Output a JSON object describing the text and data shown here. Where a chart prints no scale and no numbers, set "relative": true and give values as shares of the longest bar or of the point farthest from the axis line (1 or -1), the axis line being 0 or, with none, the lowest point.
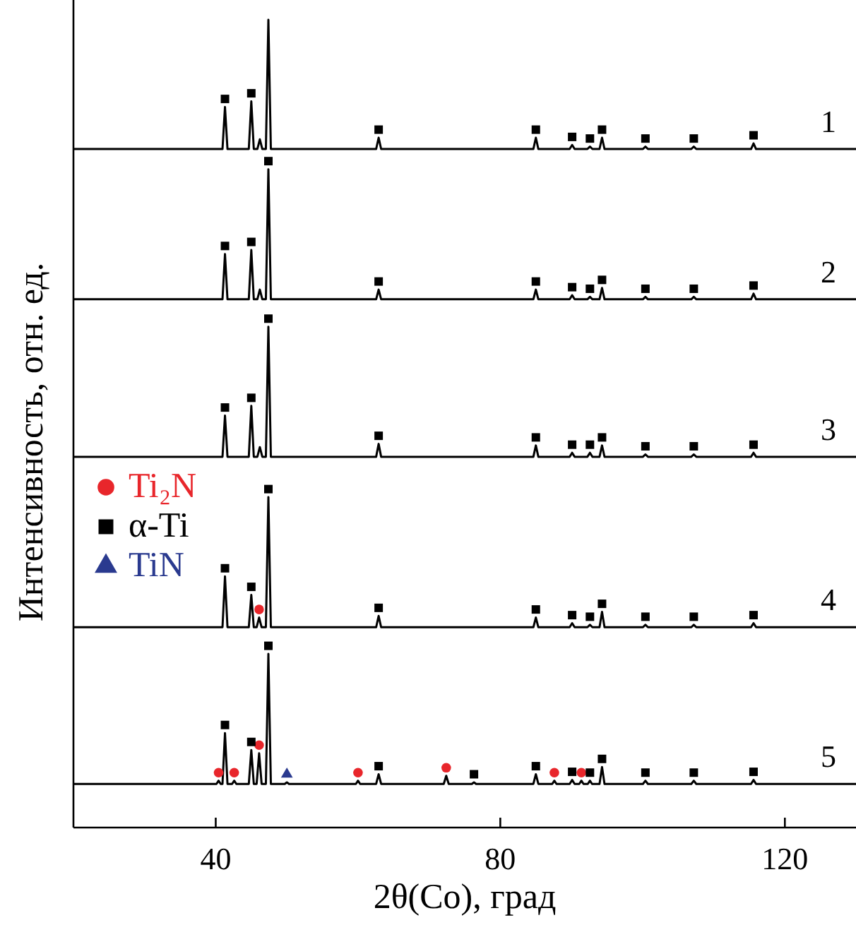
{
  "chart_data": {
    "type": "line",
    "relative": true,
    "xlabel": "2θ(Co), град",
    "ylabel": "Интенсивность, отн. ед.",
    "xlim": [
      20,
      130
    ],
    "xticks": [
      40,
      80,
      120
    ],
    "legend": "left",
    "series": [
      {
        "name": "1",
        "color": "#000000",
        "marker": "none",
        "x": [
          20,
          40.95,
          41.3,
          41.65,
          44.65,
          45.0,
          45.35,
          45.85,
          46.2,
          46.55,
          47.05,
          47.4,
          47.75,
          62.55,
          62.9,
          63.25,
          84.65,
          85.0,
          85.35,
          89.75,
          90.1,
          90.45,
          92.25,
          92.6,
          92.95,
          93.95,
          94.3,
          94.65,
          100.05,
          100.4,
          100.75,
          106.85,
          107.2,
          107.55,
          115.25,
          115.6,
          115.95,
          130
        ],
        "values": [
          0.84,
          0.84,
          0.892,
          0.84,
          0.84,
          0.899,
          0.84,
          0.84,
          0.852,
          0.84,
          0.84,
          1.0,
          0.84,
          0.84,
          0.854,
          0.84,
          0.84,
          0.854,
          0.84,
          0.84,
          0.845,
          0.84,
          0.84,
          0.843,
          0.84,
          0.84,
          0.854,
          0.84,
          0.84,
          0.843,
          0.84,
          0.84,
          0.843,
          0.84,
          0.84,
          0.847,
          0.84,
          0.84
        ]
      },
      {
        "name": "2",
        "color": "#000000",
        "marker": "none",
        "x": [
          20,
          40.95,
          41.3,
          41.65,
          44.65,
          45.0,
          45.35,
          45.85,
          46.2,
          46.55,
          47.05,
          47.4,
          47.75,
          62.55,
          62.9,
          63.25,
          84.65,
          85.0,
          85.35,
          89.75,
          90.1,
          90.45,
          92.25,
          92.6,
          92.95,
          93.95,
          94.3,
          94.65,
          100.05,
          100.4,
          100.75,
          106.85,
          107.2,
          107.55,
          115.25,
          115.6,
          115.95,
          130
        ],
        "values": [
          0.654,
          0.654,
          0.71,
          0.654,
          0.654,
          0.715,
          0.654,
          0.654,
          0.666,
          0.654,
          0.654,
          0.815,
          0.654,
          0.654,
          0.666,
          0.654,
          0.654,
          0.666,
          0.654,
          0.654,
          0.659,
          0.654,
          0.654,
          0.657,
          0.654,
          0.654,
          0.668,
          0.654,
          0.654,
          0.657,
          0.654,
          0.654,
          0.657,
          0.654,
          0.654,
          0.661,
          0.654,
          0.654
        ]
      },
      {
        "name": "3",
        "color": "#000000",
        "marker": "none",
        "x": [
          20,
          40.95,
          41.3,
          41.65,
          44.65,
          45.0,
          45.35,
          45.85,
          46.2,
          46.55,
          47.05,
          47.4,
          47.75,
          62.55,
          62.9,
          63.25,
          84.65,
          85.0,
          85.35,
          89.75,
          90.1,
          90.45,
          92.25,
          92.6,
          92.95,
          93.95,
          94.3,
          94.65,
          100.05,
          100.4,
          100.75,
          106.85,
          107.2,
          107.55,
          115.25,
          115.6,
          115.95,
          130
        ],
        "values": [
          0.459,
          0.459,
          0.51,
          0.459,
          0.459,
          0.522,
          0.459,
          0.459,
          0.471,
          0.459,
          0.459,
          0.62,
          0.459,
          0.459,
          0.475,
          0.459,
          0.459,
          0.473,
          0.459,
          0.459,
          0.464,
          0.459,
          0.459,
          0.464,
          0.459,
          0.459,
          0.473,
          0.459,
          0.459,
          0.462,
          0.459,
          0.459,
          0.462,
          0.459,
          0.459,
          0.464,
          0.459,
          0.459
        ]
      },
      {
        "name": "4",
        "color": "#000000",
        "marker": "none",
        "x": [
          20,
          40.95,
          41.3,
          41.65,
          44.65,
          45.0,
          45.35,
          45.75,
          46.1,
          46.45,
          47.05,
          47.4,
          47.75,
          62.55,
          62.9,
          63.25,
          84.65,
          85.0,
          85.35,
          89.75,
          90.1,
          90.45,
          92.25,
          92.6,
          92.95,
          93.95,
          94.3,
          94.65,
          100.05,
          100.4,
          100.75,
          106.85,
          107.2,
          107.55,
          115.25,
          115.6,
          115.95,
          130
        ],
        "values": [
          0.248,
          0.248,
          0.311,
          0.248,
          0.248,
          0.288,
          0.248,
          0.248,
          0.26,
          0.248,
          0.248,
          0.409,
          0.248,
          0.248,
          0.262,
          0.248,
          0.248,
          0.26,
          0.248,
          0.248,
          0.253,
          0.248,
          0.248,
          0.251,
          0.248,
          0.248,
          0.267,
          0.248,
          0.248,
          0.251,
          0.248,
          0.248,
          0.251,
          0.248,
          0.248,
          0.253,
          0.248,
          0.248
        ]
      },
      {
        "name": "5",
        "color": "#000000",
        "marker": "none",
        "x": [
          20,
          40.1,
          40.4,
          40.7,
          40.95,
          41.3,
          41.65,
          42.3,
          42.6,
          42.9,
          44.65,
          45.0,
          45.35,
          45.75,
          46.1,
          46.45,
          47.05,
          47.4,
          47.75,
          49.7,
          50.0,
          50.3,
          59.7,
          60.0,
          60.3,
          62.55,
          62.9,
          63.25,
          72.05,
          72.4,
          72.75,
          76.0,
          76.3,
          76.6,
          84.65,
          85.0,
          85.35,
          87.3,
          87.6,
          87.9,
          89.75,
          90.1,
          90.45,
          91.1,
          91.4,
          91.7,
          92.3,
          92.6,
          92.9,
          93.95,
          94.3,
          94.65,
          100.05,
          100.4,
          100.75,
          106.85,
          107.2,
          107.55,
          115.25,
          115.6,
          115.95,
          130
        ],
        "values": [
          0.054,
          0.054,
          0.058,
          0.054,
          0.054,
          0.117,
          0.054,
          0.054,
          0.058,
          0.054,
          0.054,
          0.096,
          0.054,
          0.054,
          0.092,
          0.054,
          0.054,
          0.215,
          0.054,
          0.054,
          0.056,
          0.054,
          0.054,
          0.058,
          0.054,
          0.054,
          0.066,
          0.054,
          0.054,
          0.064,
          0.054,
          0.054,
          0.056,
          0.054,
          0.054,
          0.066,
          0.054,
          0.054,
          0.058,
          0.054,
          0.054,
          0.059,
          0.054,
          0.054,
          0.058,
          0.054,
          0.054,
          0.058,
          0.054,
          0.054,
          0.075,
          0.054,
          0.054,
          0.058,
          0.054,
          0.054,
          0.058,
          0.054,
          0.054,
          0.059,
          0.054,
          0.054
        ]
      },
      {
        "name": "Ti₂N",
        "type": "scatter",
        "marker": "circle",
        "color": "#e8262b",
        "x": [
          46.1,
          40.4,
          42.6,
          46.1,
          60.0,
          72.4,
          87.6,
          91.4
        ],
        "values": [
          0.27,
          0.068,
          0.068,
          0.102,
          0.068,
          0.074,
          0.068,
          0.068
        ]
      },
      {
        "name": "α-Ti",
        "type": "scatter",
        "marker": "square",
        "color": "#000000",
        "x": [
          41.3,
          45.0,
          62.9,
          85.0,
          90.1,
          92.6,
          94.3,
          100.4,
          107.2,
          115.6,
          41.3,
          45.0,
          47.4,
          62.9,
          85.0,
          90.1,
          92.6,
          94.3,
          100.4,
          107.2,
          115.6,
          41.3,
          45.0,
          47.4,
          62.9,
          85.0,
          90.1,
          92.6,
          94.3,
          100.4,
          107.2,
          115.6,
          41.3,
          45.0,
          47.4,
          62.9,
          85.0,
          90.1,
          92.6,
          94.3,
          100.4,
          107.2,
          115.6,
          41.3,
          45.0,
          47.4,
          62.9,
          76.3,
          85.0,
          90.1,
          92.6,
          94.3,
          100.4,
          107.2,
          115.6
        ],
        "values": [
          0.902,
          0.909,
          0.864,
          0.864,
          0.855,
          0.853,
          0.864,
          0.853,
          0.853,
          0.857,
          0.72,
          0.725,
          0.825,
          0.676,
          0.676,
          0.669,
          0.667,
          0.678,
          0.667,
          0.667,
          0.671,
          0.52,
          0.532,
          0.63,
          0.485,
          0.483,
          0.474,
          0.474,
          0.483,
          0.472,
          0.472,
          0.474,
          0.321,
          0.298,
          0.419,
          0.272,
          0.27,
          0.263,
          0.261,
          0.277,
          0.261,
          0.261,
          0.263,
          0.127,
          0.106,
          0.225,
          0.076,
          0.066,
          0.076,
          0.069,
          0.068,
          0.085,
          0.068,
          0.068,
          0.069
        ]
      },
      {
        "name": "TiN",
        "type": "scatter",
        "marker": "triangle",
        "color": "#2a3a8f",
        "x": [
          50.0
        ],
        "values": [
          0.066
        ]
      }
    ]
  }
}
